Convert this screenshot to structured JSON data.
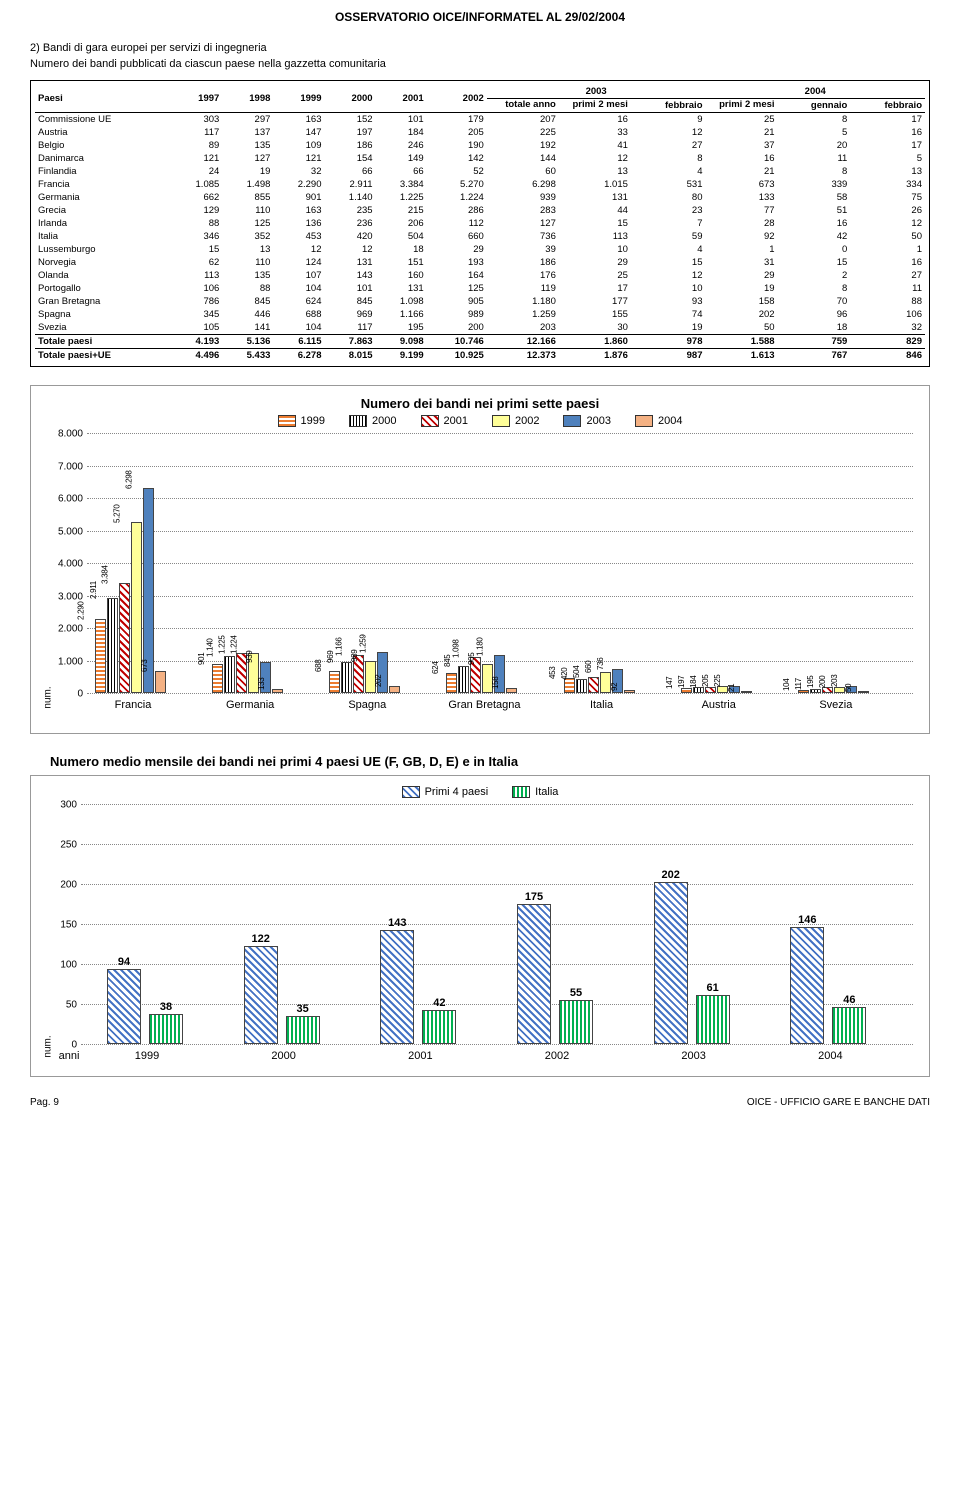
{
  "doc_title": "OSSERVATORIO OICE/INFORMATEL AL 29/02/2004",
  "section2": {
    "header": "2) Bandi di gara europei per servizi di ingegneria",
    "sub": "Numero dei bandi pubblicati da ciascun paese nella gazzetta comunitaria"
  },
  "table": {
    "col_paesi": "Paesi",
    "years": [
      "1997",
      "1998",
      "1999",
      "2000",
      "2001",
      "2002"
    ],
    "grp2003": "2003",
    "grp2004": "2004",
    "sub2003": [
      "totale anno",
      "primi 2 mesi",
      "febbraio"
    ],
    "sub2004": [
      "primi 2 mesi",
      "gennaio",
      "febbraio"
    ],
    "rows": [
      {
        "name": "Commissione UE",
        "v": [
          "303",
          "297",
          "163",
          "152",
          "101",
          "179",
          "207",
          "16",
          "9",
          "25",
          "8",
          "17"
        ]
      },
      {
        "name": "Austria",
        "v": [
          "117",
          "137",
          "147",
          "197",
          "184",
          "205",
          "225",
          "33",
          "12",
          "21",
          "5",
          "16"
        ]
      },
      {
        "name": "Belgio",
        "v": [
          "89",
          "135",
          "109",
          "186",
          "246",
          "190",
          "192",
          "41",
          "27",
          "37",
          "20",
          "17"
        ]
      },
      {
        "name": "Danimarca",
        "v": [
          "121",
          "127",
          "121",
          "154",
          "149",
          "142",
          "144",
          "12",
          "8",
          "16",
          "11",
          "5"
        ]
      },
      {
        "name": "Finlandia",
        "v": [
          "24",
          "19",
          "32",
          "66",
          "66",
          "52",
          "60",
          "13",
          "4",
          "21",
          "8",
          "13"
        ]
      },
      {
        "name": "Francia",
        "v": [
          "1.085",
          "1.498",
          "2.290",
          "2.911",
          "3.384",
          "5.270",
          "6.298",
          "1.015",
          "531",
          "673",
          "339",
          "334"
        ]
      },
      {
        "name": "Germania",
        "v": [
          "662",
          "855",
          "901",
          "1.140",
          "1.225",
          "1.224",
          "939",
          "131",
          "80",
          "133",
          "58",
          "75"
        ]
      },
      {
        "name": "Grecia",
        "v": [
          "129",
          "110",
          "163",
          "235",
          "215",
          "286",
          "283",
          "44",
          "23",
          "77",
          "51",
          "26"
        ]
      },
      {
        "name": "Irlanda",
        "v": [
          "88",
          "125",
          "136",
          "236",
          "206",
          "112",
          "127",
          "15",
          "7",
          "28",
          "16",
          "12"
        ]
      },
      {
        "name": "Italia",
        "v": [
          "346",
          "352",
          "453",
          "420",
          "504",
          "660",
          "736",
          "113",
          "59",
          "92",
          "42",
          "50"
        ]
      },
      {
        "name": "Lussemburgo",
        "v": [
          "15",
          "13",
          "12",
          "12",
          "18",
          "29",
          "39",
          "10",
          "4",
          "1",
          "0",
          "1"
        ]
      },
      {
        "name": "Norvegia",
        "v": [
          "62",
          "110",
          "124",
          "131",
          "151",
          "193",
          "186",
          "29",
          "15",
          "31",
          "15",
          "16"
        ]
      },
      {
        "name": "Olanda",
        "v": [
          "113",
          "135",
          "107",
          "143",
          "160",
          "164",
          "176",
          "25",
          "12",
          "29",
          "2",
          "27"
        ]
      },
      {
        "name": "Portogallo",
        "v": [
          "106",
          "88",
          "104",
          "101",
          "131",
          "125",
          "119",
          "17",
          "10",
          "19",
          "8",
          "11"
        ]
      },
      {
        "name": "Gran Bretagna",
        "v": [
          "786",
          "845",
          "624",
          "845",
          "1.098",
          "905",
          "1.180",
          "177",
          "93",
          "158",
          "70",
          "88"
        ]
      },
      {
        "name": "Spagna",
        "v": [
          "345",
          "446",
          "688",
          "969",
          "1.166",
          "989",
          "1.259",
          "155",
          "74",
          "202",
          "96",
          "106"
        ]
      },
      {
        "name": "Svezia",
        "v": [
          "105",
          "141",
          "104",
          "117",
          "195",
          "200",
          "203",
          "30",
          "19",
          "50",
          "18",
          "32"
        ]
      }
    ],
    "totals": [
      {
        "name": "Totale paesi",
        "v": [
          "4.193",
          "5.136",
          "6.115",
          "7.863",
          "9.098",
          "10.746",
          "12.166",
          "1.860",
          "978",
          "1.588",
          "759",
          "829"
        ]
      },
      {
        "name": "Totale paesi+UE",
        "v": [
          "4.496",
          "5.433",
          "6.278",
          "8.015",
          "9.199",
          "10.925",
          "12.373",
          "1.876",
          "987",
          "1.613",
          "767",
          "846"
        ]
      }
    ]
  },
  "chart1": {
    "title": "Numero dei bandi nei primi sette paesi",
    "legend": [
      "1999",
      "2000",
      "2001",
      "2002",
      "2003",
      "2004"
    ],
    "legend_colors": [
      "pat-horiz",
      "pat-vert",
      "pat-diag",
      "#ffff99",
      "#4f81bd",
      "#f4b183"
    ],
    "ymax": 8000,
    "ytick": 1000,
    "yticklabels": [
      "0",
      "1.000",
      "2.000",
      "3.000",
      "4.000",
      "5.000",
      "6.000",
      "7.000",
      "8.000"
    ],
    "num_label": "num.",
    "categories": [
      "Francia",
      "Germania",
      "Spagna",
      "Gran Bretagna",
      "Italia",
      "Austria",
      "Svezia"
    ],
    "series": [
      {
        "vals": [
          2290,
          2911,
          3384,
          5270,
          6298,
          673
        ],
        "lbls": [
          "2.290",
          "2.911",
          "3.384",
          "5.270",
          "6.298",
          "673"
        ]
      },
      {
        "vals": [
          901,
          1140,
          1225,
          1224,
          939,
          133
        ],
        "lbls": [
          "901",
          "1.140",
          "1.225",
          "1.224",
          "939",
          "133"
        ]
      },
      {
        "vals": [
          688,
          969,
          1166,
          989,
          1259,
          202
        ],
        "lbls": [
          "688",
          "969",
          "1.166",
          "989",
          "1.259",
          "202"
        ]
      },
      {
        "vals": [
          624,
          845,
          1098,
          905,
          1180,
          158
        ],
        "lbls": [
          "624",
          "845",
          "1.098",
          "905",
          "1.180",
          "158"
        ]
      },
      {
        "vals": [
          453,
          420,
          504,
          660,
          736,
          92
        ],
        "lbls": [
          "453",
          "420",
          "504",
          "660",
          "736",
          "92"
        ]
      },
      {
        "vals": [
          147,
          197,
          184,
          205,
          225,
          21
        ],
        "lbls": [
          "147",
          "197",
          "184",
          "205",
          "225",
          "21"
        ]
      },
      {
        "vals": [
          104,
          117,
          195,
          200,
          203,
          50
        ],
        "lbls": [
          "104",
          "117",
          "195",
          "200",
          "203",
          "50"
        ]
      }
    ]
  },
  "chart2": {
    "title": "Numero medio mensile dei bandi nei primi 4 paesi UE (F, GB, D, E) e in Italia",
    "legend": [
      "Primi 4 paesi",
      "Italia"
    ],
    "legend_colors": [
      "pat-diag2",
      "pat-vert2"
    ],
    "ymax": 300,
    "ytick": 50,
    "num_label": "num.",
    "xaxis_label": "anni",
    "categories": [
      "1999",
      "2000",
      "2001",
      "2002",
      "2003",
      "2004"
    ],
    "primi4": [
      94,
      122,
      143,
      175,
      202,
      146
    ],
    "italia": [
      38,
      35,
      42,
      55,
      61,
      46
    ]
  },
  "footer": {
    "page": "Pag. 9",
    "right": "OICE - UFFICIO GARE E BANCHE DATI"
  }
}
